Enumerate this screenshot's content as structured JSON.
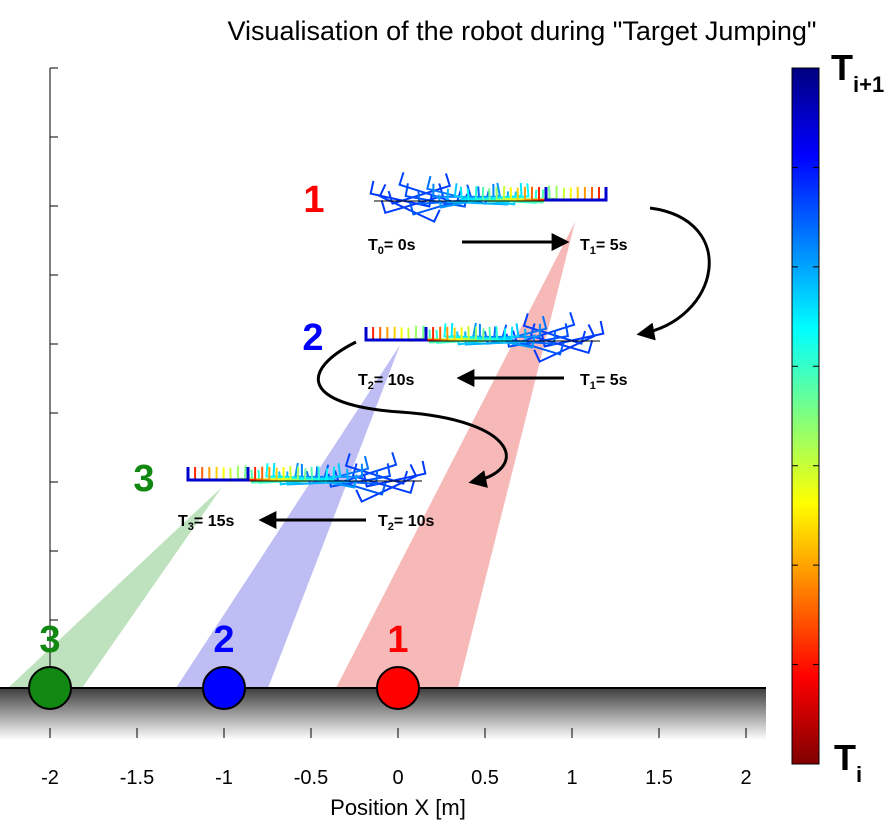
{
  "title": "Visualisation of the robot during \"Target Jumping\"",
  "x_axis": {
    "label": "Position X [m]",
    "ticks": [
      "-2",
      "-1.5",
      "-1",
      "-0.5",
      "0",
      "0.5",
      "1",
      "1.5",
      "2"
    ]
  },
  "colorbar": {
    "top_label": "T",
    "top_sub": "i+1",
    "bottom_label": "T",
    "bottom_sub": "i",
    "colormap": "jet"
  },
  "targets": [
    {
      "number": "1",
      "color": "#ff0000",
      "beam_color": "#f4a0a0"
    },
    {
      "number": "2",
      "color": "#0000ff",
      "beam_color": "#a8a8f0"
    },
    {
      "number": "3",
      "color": "#118811",
      "beam_color": "#a8d8a8"
    }
  ],
  "stages": [
    {
      "number": "1",
      "color": "#ff0000",
      "from_t": "T",
      "from_sub": "0",
      "from_val": "= 0s",
      "to_t": "T",
      "to_sub": "1",
      "to_val": "= 5s"
    },
    {
      "number": "2",
      "color": "#0000ff",
      "from_t": "T",
      "from_sub": "1",
      "from_val": "= 5s",
      "to_t": "T",
      "to_sub": "2",
      "to_val": "= 10s"
    },
    {
      "number": "3",
      "color": "#118811",
      "from_t": "T",
      "from_sub": "2",
      "from_val": "= 10s",
      "to_t": "T",
      "to_sub": "3",
      "to_val": "= 15s"
    }
  ]
}
